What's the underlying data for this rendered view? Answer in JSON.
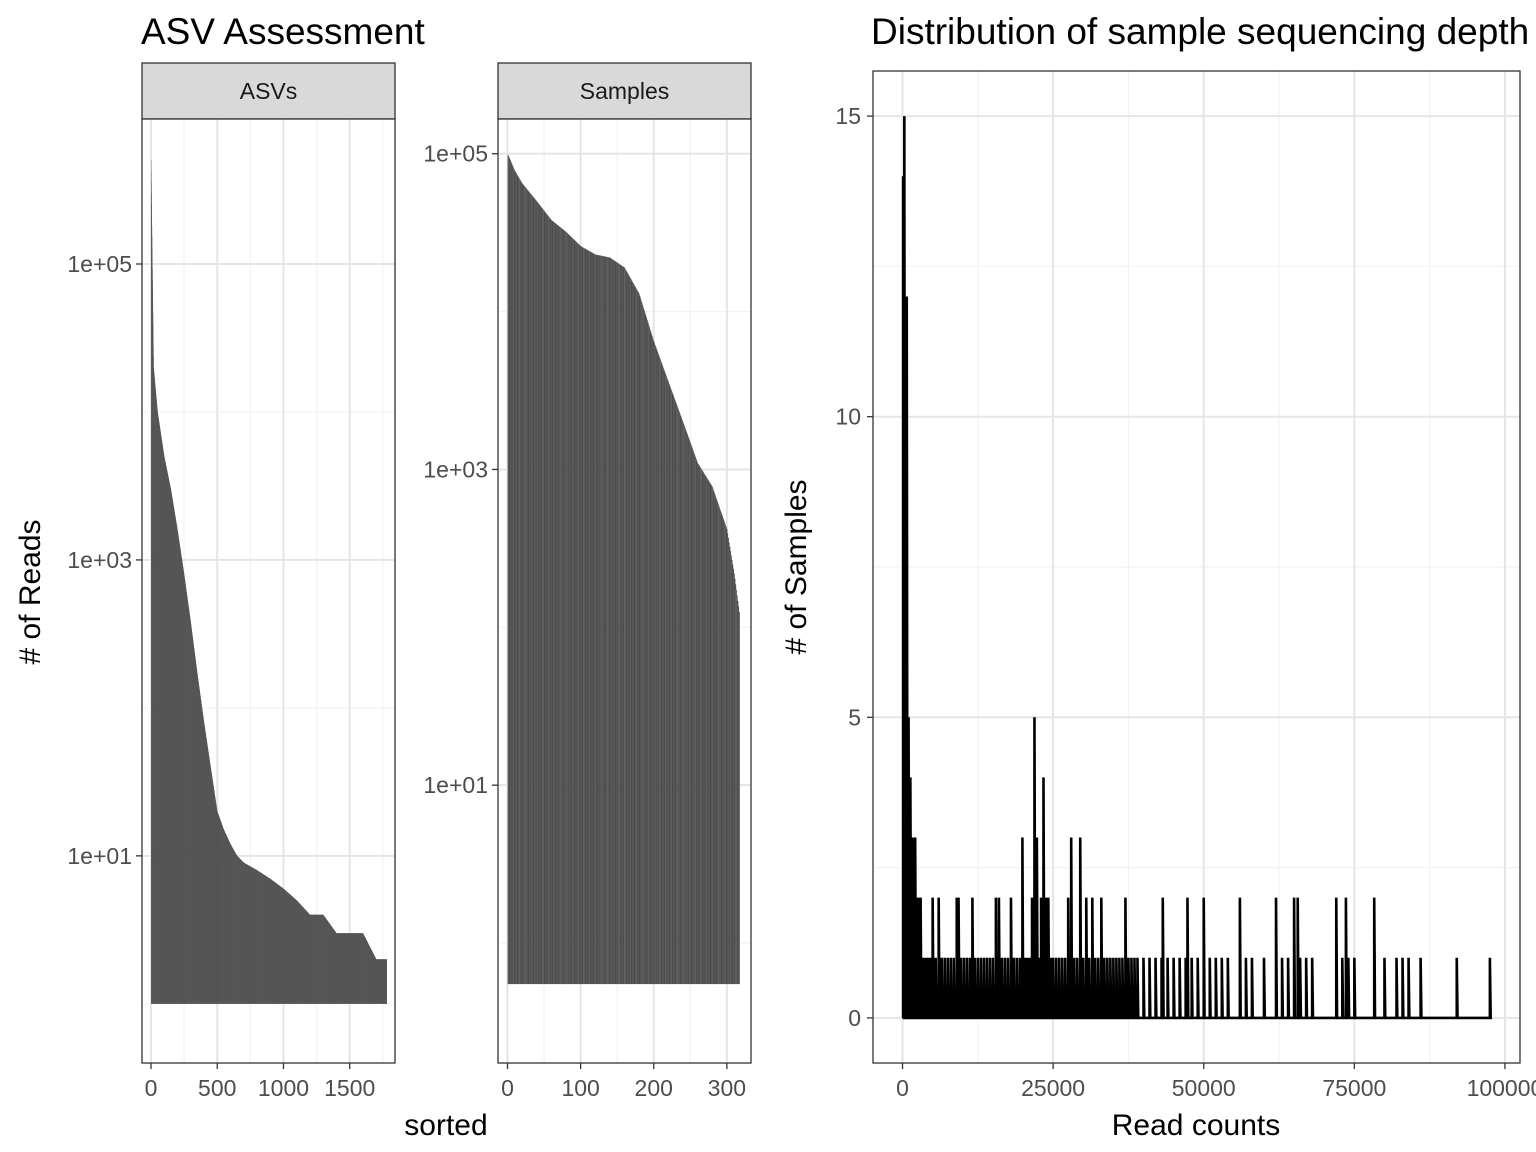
{
  "chart_data": [
    {
      "type": "bar",
      "title": "ASV Assessment",
      "facet": "ASVs",
      "xlabel": "sorted",
      "ylabel": "# of Reads",
      "y_scale": "log10",
      "xlim": [
        -68,
        1842
      ],
      "ylim_log10": [
        -0.4,
        5.98
      ],
      "x_ticks": [
        0,
        500,
        1000,
        1500
      ],
      "x_tick_labels": [
        "0",
        "500",
        "1000",
        "1500"
      ],
      "y_ticks": [
        10,
        1000,
        100000
      ],
      "y_tick_labels": [
        "1e+01",
        "1e+03",
        "1e+05"
      ],
      "grid": true,
      "n_bars": 1780,
      "series": [
        {
          "rank": [
            1,
            20,
            50,
            100,
            150,
            200,
            250,
            300,
            350,
            400,
            450,
            500,
            550,
            600,
            650,
            700,
            800,
            900,
            1000,
            1100,
            1200,
            1300,
            1400,
            1500,
            1600,
            1700,
            1780
          ],
          "reads": [
            501000,
            20000,
            10000,
            5000,
            3000,
            1600,
            800,
            380,
            170,
            80,
            40,
            20,
            15,
            12,
            10,
            9,
            8,
            7,
            6,
            5,
            4,
            4,
            3,
            3,
            3,
            2,
            2
          ]
        }
      ]
    },
    {
      "type": "bar",
      "facet": "Samples",
      "xlabel": "sorted",
      "ylabel": "# of Reads",
      "y_scale": "log10",
      "xlim": [
        -13,
        333
      ],
      "ylim_log10": [
        -0.76,
        5.22
      ],
      "x_ticks": [
        0,
        100,
        200,
        300
      ],
      "x_tick_labels": [
        "0",
        "100",
        "200",
        "300"
      ],
      "y_ticks": [
        10,
        1000,
        100000
      ],
      "y_tick_labels": [
        "1e+01",
        "1e+03",
        "1e+05"
      ],
      "grid": true,
      "n_bars": 317,
      "series": [
        {
          "rank": [
            1,
            10,
            20,
            40,
            60,
            80,
            100,
            120,
            140,
            160,
            180,
            200,
            220,
            240,
            260,
            280,
            300,
            310,
            317
          ],
          "reads": [
            98000,
            78000,
            65000,
            50000,
            38000,
            32000,
            26000,
            23000,
            22000,
            19000,
            13000,
            6500,
            3600,
            2000,
            1100,
            780,
            420,
            220,
            125
          ]
        }
      ]
    },
    {
      "type": "line",
      "title": "Distribution of sample sequencing depth",
      "xlabel": "Read counts",
      "ylabel": "# of Samples",
      "xlim": [
        -4900,
        102500
      ],
      "ylim": [
        -0.75,
        15.75
      ],
      "x_ticks": [
        0,
        25000,
        50000,
        75000,
        100000
      ],
      "x_tick_labels": [
        "0",
        "25000",
        "50000",
        "75000",
        "100000"
      ],
      "y_ticks": [
        0,
        5,
        10,
        15
      ],
      "y_tick_labels": [
        "0",
        "5",
        "10",
        "15"
      ],
      "grid": true,
      "series": [
        {
          "peaks": [
            [
              100,
              14
            ],
            [
              300,
              15
            ],
            [
              500,
              5
            ],
            [
              700,
              12
            ],
            [
              1000,
              5
            ],
            [
              1300,
              4
            ],
            [
              1500,
              3
            ],
            [
              1800,
              3
            ],
            [
              2100,
              3
            ],
            [
              2400,
              2
            ],
            [
              2700,
              2
            ],
            [
              3000,
              2
            ],
            [
              3400,
              1
            ],
            [
              3800,
              1
            ],
            [
              4200,
              1
            ],
            [
              4600,
              1
            ],
            [
              5000,
              2
            ],
            [
              5500,
              1
            ],
            [
              6000,
              2
            ],
            [
              6500,
              1
            ],
            [
              7000,
              1
            ],
            [
              7500,
              1
            ],
            [
              8000,
              1
            ],
            [
              8500,
              1
            ],
            [
              9000,
              2
            ],
            [
              9300,
              2
            ],
            [
              9700,
              1
            ],
            [
              10200,
              1
            ],
            [
              10700,
              1
            ],
            [
              11200,
              1
            ],
            [
              11600,
              2
            ],
            [
              12000,
              1
            ],
            [
              12500,
              1
            ],
            [
              13000,
              1
            ],
            [
              13500,
              1
            ],
            [
              14000,
              1
            ],
            [
              14500,
              1
            ],
            [
              15000,
              1
            ],
            [
              15500,
              2
            ],
            [
              16000,
              2
            ],
            [
              16500,
              1
            ],
            [
              17000,
              1
            ],
            [
              17500,
              1
            ],
            [
              18000,
              2
            ],
            [
              18500,
              1
            ],
            [
              19000,
              1
            ],
            [
              19500,
              1
            ],
            [
              19900,
              3
            ],
            [
              20300,
              1
            ],
            [
              20700,
              1
            ],
            [
              21100,
              1
            ],
            [
              21500,
              2
            ],
            [
              21900,
              5
            ],
            [
              22300,
              3
            ],
            [
              22700,
              1
            ],
            [
              23000,
              2
            ],
            [
              23400,
              4
            ],
            [
              23800,
              2
            ],
            [
              24200,
              2
            ],
            [
              24600,
              1
            ],
            [
              25000,
              1
            ],
            [
              25500,
              1
            ],
            [
              26000,
              1
            ],
            [
              26500,
              1
            ],
            [
              27000,
              1
            ],
            [
              27500,
              2
            ],
            [
              28000,
              3
            ],
            [
              28500,
              1
            ],
            [
              29000,
              1
            ],
            [
              29500,
              3
            ],
            [
              30000,
              1
            ],
            [
              30500,
              2
            ],
            [
              31000,
              1
            ],
            [
              31500,
              2
            ],
            [
              32000,
              1
            ],
            [
              32500,
              1
            ],
            [
              33000,
              2
            ],
            [
              33500,
              1
            ],
            [
              34000,
              1
            ],
            [
              34500,
              1
            ],
            [
              35000,
              1
            ],
            [
              35500,
              1
            ],
            [
              36000,
              1
            ],
            [
              36500,
              1
            ],
            [
              37000,
              2
            ],
            [
              37500,
              1
            ],
            [
              38000,
              1
            ],
            [
              38500,
              1
            ],
            [
              39000,
              1
            ],
            [
              40000,
              1
            ],
            [
              41000,
              1
            ],
            [
              42000,
              1
            ],
            [
              43000,
              1
            ],
            [
              43200,
              2
            ],
            [
              44000,
              1
            ],
            [
              45000,
              1
            ],
            [
              46000,
              1
            ],
            [
              47000,
              1
            ],
            [
              47300,
              2
            ],
            [
              48000,
              1
            ],
            [
              49000,
              1
            ],
            [
              50000,
              2
            ],
            [
              51000,
              1
            ],
            [
              52000,
              1
            ],
            [
              53000,
              1
            ],
            [
              54000,
              1
            ],
            [
              56000,
              2
            ],
            [
              57000,
              1
            ],
            [
              58000,
              1
            ],
            [
              60000,
              1
            ],
            [
              62000,
              2
            ],
            [
              63000,
              1
            ],
            [
              64000,
              1
            ],
            [
              65000,
              2
            ],
            [
              65600,
              2
            ],
            [
              66000,
              1
            ],
            [
              67000,
              1
            ],
            [
              68000,
              1
            ],
            [
              72000,
              2
            ],
            [
              73000,
              1
            ],
            [
              73600,
              2
            ],
            [
              74000,
              1
            ],
            [
              75000,
              1
            ],
            [
              78300,
              2
            ],
            [
              80000,
              1
            ],
            [
              82000,
              1
            ],
            [
              83000,
              1
            ],
            [
              84000,
              1
            ],
            [
              86000,
              1
            ],
            [
              92000,
              1
            ],
            [
              97500,
              1
            ]
          ]
        }
      ]
    }
  ]
}
